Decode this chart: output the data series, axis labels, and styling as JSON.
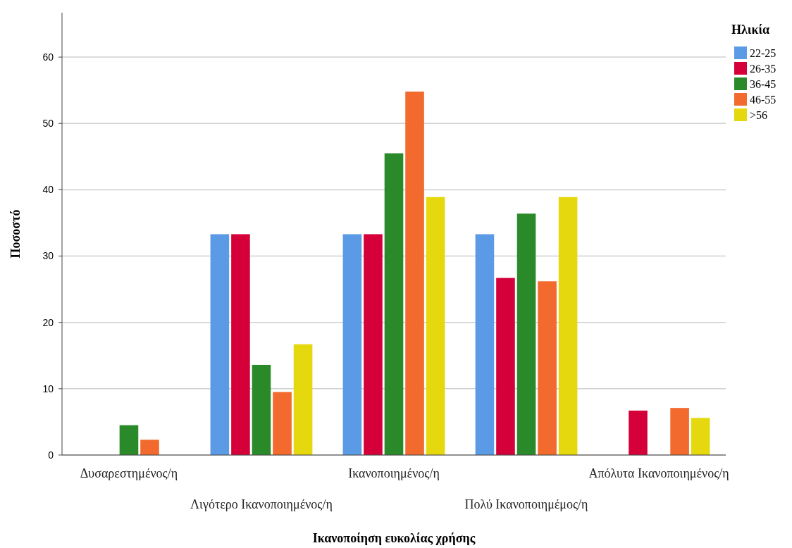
{
  "chart_data": {
    "type": "bar",
    "xlabel": "Ικανοποίηση ευκολίας χρήσης",
    "ylabel": "Ποσοστό",
    "legend_title": "Ηλικία",
    "categories": [
      "Δυσαρεστημένος/η",
      "Λιγότερο Ικανοποιημένος/η",
      "Ικανοποιημένος/η",
      "Πολύ Ικανοποιημέμος/η",
      "Απόλυτα Ικανοποιημένος/η"
    ],
    "series": [
      {
        "name": "22-25",
        "color": "#5b9be6",
        "values": [
          0,
          33.3,
          33.3,
          33.3,
          0
        ]
      },
      {
        "name": "26-35",
        "color": "#d5003a",
        "values": [
          0,
          33.3,
          33.3,
          26.7,
          6.7
        ]
      },
      {
        "name": "36-45",
        "color": "#2a8a2a",
        "values": [
          4.5,
          13.6,
          45.5,
          36.4,
          0
        ]
      },
      {
        "name": "46-55",
        "color": "#f26a2d",
        "values": [
          2.3,
          9.5,
          54.8,
          26.2,
          7.1
        ]
      },
      {
        "name": ">56",
        "color": "#e6d80e",
        "values": [
          0,
          16.7,
          38.9,
          38.9,
          5.6
        ]
      }
    ],
    "ylim": [
      0,
      66.7
    ],
    "yticks": [
      0,
      10,
      20,
      30,
      40,
      50,
      60
    ],
    "grid": "y",
    "legend": "top right"
  }
}
